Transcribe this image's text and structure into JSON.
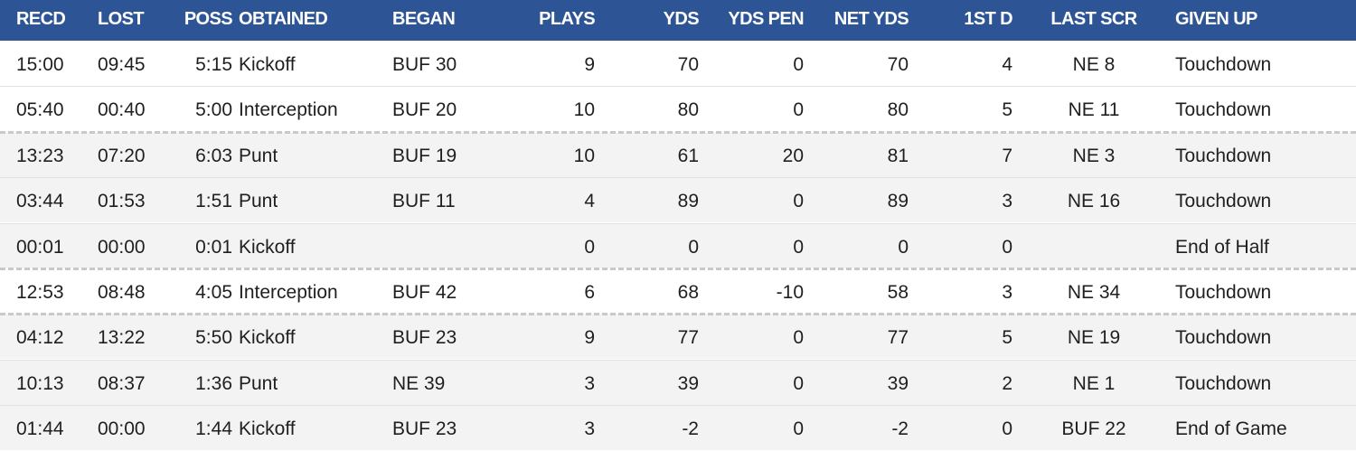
{
  "table": {
    "header": [
      "RECD",
      "LOST",
      "POSS",
      "OBTAINED",
      "BEGAN",
      "PLAYS",
      "YDS",
      "YDS PEN",
      "NET YDS",
      "1ST D",
      "LAST SCR",
      "GIVEN UP"
    ],
    "rows": [
      [
        "15:00",
        "09:45",
        "5:15",
        "Kickoff",
        "BUF 30",
        9,
        70,
        0,
        70,
        4,
        "NE 8",
        "Touchdown"
      ],
      [
        "05:40",
        "00:40",
        "5:00",
        "Interception",
        "BUF 20",
        10,
        80,
        0,
        80,
        5,
        "NE 11",
        "Touchdown"
      ],
      [
        "13:23",
        "07:20",
        "6:03",
        "Punt",
        "BUF 19",
        10,
        61,
        20,
        81,
        7,
        "NE 3",
        "Touchdown"
      ],
      [
        "03:44",
        "01:53",
        "1:51",
        "Punt",
        "BUF 11",
        4,
        89,
        0,
        89,
        3,
        "NE 16",
        "Touchdown"
      ],
      [
        "00:01",
        "00:00",
        "0:01",
        "Kickoff",
        null,
        0,
        0,
        0,
        0,
        0,
        null,
        "End of Half"
      ],
      [
        "12:53",
        "08:48",
        "4:05",
        "Interception",
        "BUF 42",
        6,
        68,
        -10,
        58,
        3,
        "NE 34",
        "Touchdown"
      ],
      [
        "04:12",
        "13:22",
        "5:50",
        "Kickoff",
        "BUF 23",
        9,
        77,
        0,
        77,
        5,
        "NE 19",
        "Touchdown"
      ],
      [
        "10:13",
        "08:37",
        "1:36",
        "Punt",
        "NE 39",
        3,
        39,
        0,
        39,
        2,
        "NE 1",
        "Touchdown"
      ],
      [
        "01:44",
        "00:00",
        "1:44",
        "Kickoff",
        "BUF 23",
        3,
        -2,
        0,
        -2,
        0,
        "BUF 22",
        "End of Game"
      ]
    ]
  }
}
